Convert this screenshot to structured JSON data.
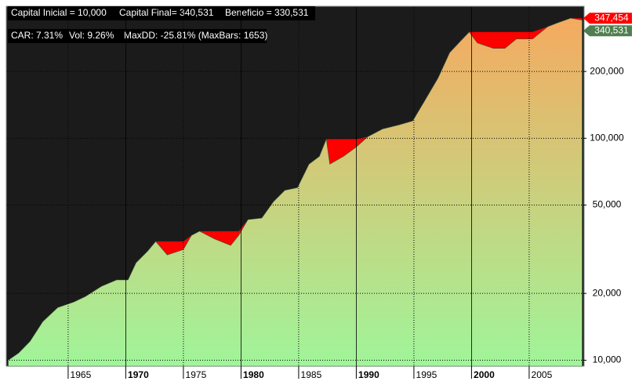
{
  "chart_data": {
    "type": "area",
    "annotations": [
      "Capital Inicial = 10,000",
      "Capital Final= 340,531",
      "Beneficio = 330,531",
      "CAR: 7.31%",
      "Vol: 9.26%",
      "MaxDD: -25.81% (MaxBars: 1653)"
    ],
    "x": [
      1959.8,
      1960.7,
      1961.7,
      1962.8,
      1964.1,
      1965.5,
      1966.5,
      1967.9,
      1969.2,
      1970.2,
      1970.9,
      1971.9,
      1972.6,
      1973.6,
      1975.0,
      1975.7,
      1976.4,
      1977.7,
      1979.1,
      1979.8,
      1980.6,
      1981.8,
      1982.8,
      1983.8,
      1984.9,
      1985.9,
      1986.8,
      1987.4,
      1987.7,
      1988.9,
      1990.0,
      1991.0,
      1992.3,
      1993.7,
      1994.9,
      1996.1,
      1997.1,
      1998.1,
      1999.1,
      1999.8,
      2000.5,
      2001.9,
      2002.9,
      2003.9,
      2005.3,
      2006.6,
      2007.4,
      2008.6,
      2009.6
    ],
    "series": [
      {
        "color": "#ff0000",
        "values": [
          10000,
          10770,
          12170,
          14930,
          17280,
          18300,
          19370,
          21530,
          23000,
          23000,
          27500,
          31000,
          34300,
          34300,
          34300,
          36500,
          38100,
          38100,
          38100,
          38100,
          43000,
          43700,
          51700,
          58300,
          59900,
          76400,
          82900,
          99100,
          99100,
          99100,
          99100,
          101600,
          110200,
          114800,
          119700,
          152600,
          187000,
          243000,
          276000,
          301000,
          301000,
          301000,
          301000,
          301000,
          301000,
          318000,
          330000,
          347454,
          347454
        ]
      },
      {
        "color": "#a0f59a",
        "color_top": "#f5aa60",
        "values": [
          10000,
          10770,
          12170,
          14930,
          17280,
          18300,
          19370,
          21530,
          23000,
          23000,
          27500,
          31000,
          34300,
          29800,
          31500,
          36500,
          38100,
          35200,
          32900,
          36500,
          43000,
          43700,
          51700,
          58300,
          59900,
          76400,
          82900,
          99100,
          76400,
          82900,
          91300,
          101600,
          110200,
          114800,
          119700,
          152600,
          187000,
          243000,
          276000,
          301000,
          269000,
          254000,
          254000,
          280000,
          280000,
          318000,
          330000,
          347454,
          340531
        ]
      }
    ],
    "end_labels": [
      {
        "value": 347454,
        "label": "347,454",
        "color": "#ff0000"
      },
      {
        "value": 340531,
        "label": "340,531",
        "color": "#4f7f4f"
      }
    ],
    "xlim": [
      1959.7,
      2009.7
    ],
    "xticks": [
      1965,
      1970,
      1975,
      1980,
      1985,
      1990,
      1995,
      2000,
      2005
    ],
    "ylim": [
      9400,
      390000
    ],
    "yticks": [
      {
        "value": 10000,
        "label": "10,000"
      },
      {
        "value": 20000,
        "label": "20,000"
      },
      {
        "value": 50000,
        "label": "50,000"
      },
      {
        "value": 100000,
        "label": "100,000"
      },
      {
        "value": 200000,
        "label": "200,000"
      }
    ],
    "log_y": true,
    "grid": true
  }
}
